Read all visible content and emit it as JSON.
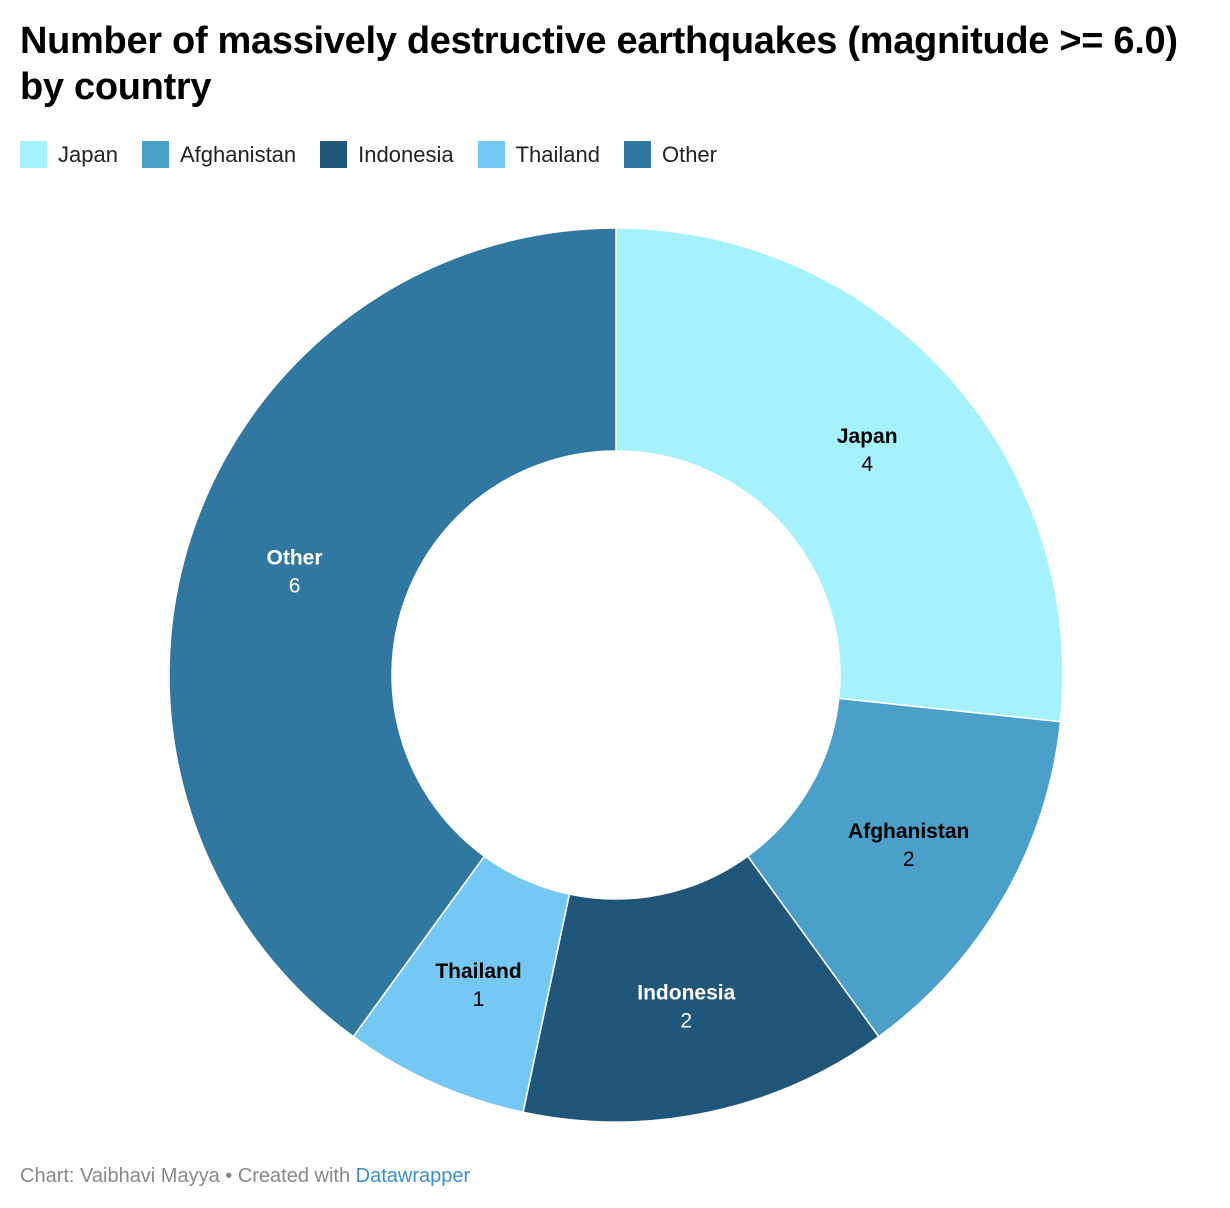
{
  "chart_data": {
    "type": "pie",
    "title": "Number of massively destructive earthquakes (magnitude >= 6.0) by country",
    "slices": [
      {
        "label": "Japan",
        "value": 4,
        "color": "#a5f2fc",
        "text_color": "#000000"
      },
      {
        "label": "Afghanistan",
        "value": 2,
        "color": "#4aa0c9",
        "text_color": "#000000"
      },
      {
        "label": "Indonesia",
        "value": 2,
        "color": "#20567a",
        "text_color": "#ffffff"
      },
      {
        "label": "Thailand",
        "value": 1,
        "color": "#76c8f4",
        "text_color": "#000000"
      },
      {
        "label": "Other",
        "value": 6,
        "color": "#30789f",
        "text_color": "#ffffff"
      }
    ],
    "legend": [
      "Japan",
      "Afghanistan",
      "Indonesia",
      "Thailand",
      "Other"
    ],
    "legend_position": "top-left",
    "donut": true
  },
  "footer": {
    "credit": "Chart: Vaibhavi Mayya • Created with ",
    "tool": "Datawrapper"
  }
}
